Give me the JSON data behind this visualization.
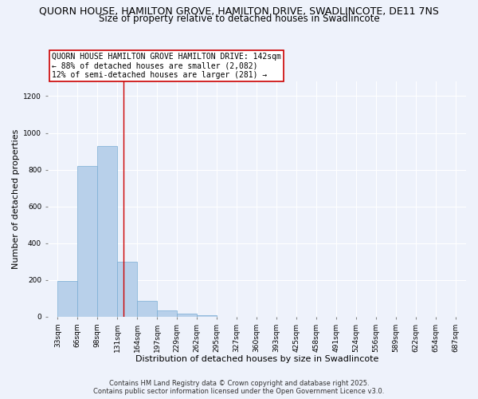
{
  "title_line1": "QUORN HOUSE, HAMILTON GROVE, HAMILTON DRIVE, SWADLINCOTE, DE11 7NS",
  "title_line2": "Size of property relative to detached houses in Swadlincote",
  "xlabel": "Distribution of detached houses by size in Swadlincote",
  "ylabel": "Number of detached properties",
  "bar_left_edges": [
    33,
    66,
    99,
    132,
    165,
    198,
    231,
    264,
    297,
    330,
    363,
    396,
    429,
    462,
    495,
    528,
    561,
    594,
    627,
    660
  ],
  "bar_heights": [
    196,
    822,
    930,
    300,
    86,
    35,
    15,
    10,
    0,
    0,
    0,
    0,
    0,
    0,
    0,
    0,
    0,
    0,
    0,
    0
  ],
  "bin_width": 33,
  "tick_labels": [
    "33sqm",
    "66sqm",
    "98sqm",
    "131sqm",
    "164sqm",
    "197sqm",
    "229sqm",
    "262sqm",
    "295sqm",
    "327sqm",
    "360sqm",
    "393sqm",
    "425sqm",
    "458sqm",
    "491sqm",
    "524sqm",
    "556sqm",
    "589sqm",
    "622sqm",
    "654sqm",
    "687sqm"
  ],
  "tick_positions": [
    33,
    66,
    99,
    132,
    165,
    198,
    231,
    264,
    297,
    330,
    363,
    396,
    429,
    462,
    495,
    528,
    561,
    594,
    627,
    660,
    693
  ],
  "bar_color": "#b8d0ea",
  "bar_edge_color": "#7aadd4",
  "vline_x": 142,
  "vline_color": "#cc0000",
  "annotation_title": "QUORN HOUSE HAMILTON GROVE HAMILTON DRIVE: 142sqm",
  "annotation_line2": "← 88% of detached houses are smaller (2,082)",
  "annotation_line3": "12% of semi-detached houses are larger (281) →",
  "annotation_box_facecolor": "#ffffff",
  "annotation_box_edgecolor": "#cc0000",
  "ylim": [
    0,
    1280
  ],
  "xlim": [
    16.5,
    710
  ],
  "yticks": [
    0,
    200,
    400,
    600,
    800,
    1000,
    1200
  ],
  "footnote1": "Contains HM Land Registry data © Crown copyright and database right 2025.",
  "footnote2": "Contains public sector information licensed under the Open Government Licence v3.0.",
  "bg_color": "#eef2fb",
  "grid_color": "#ffffff",
  "title_fontsize": 9,
  "subtitle_fontsize": 8.5,
  "axis_label_fontsize": 8,
  "tick_fontsize": 6.5,
  "annot_fontsize": 7,
  "footnote_fontsize": 6
}
